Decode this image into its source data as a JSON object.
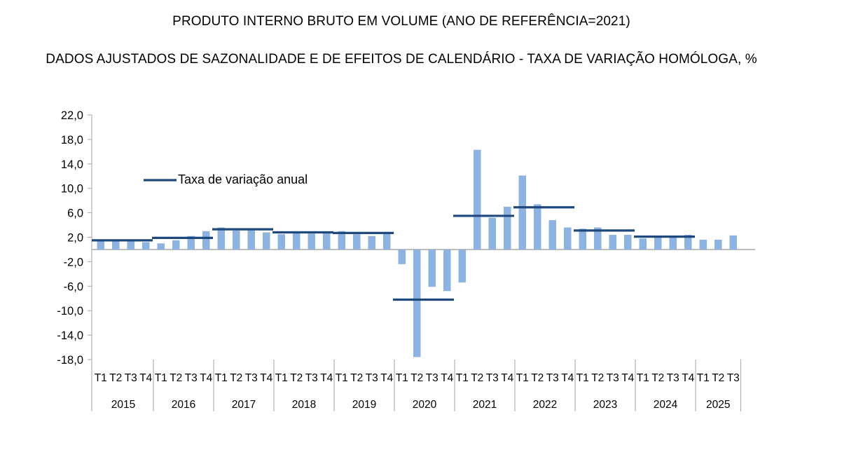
{
  "header": {
    "title": "PRODUTO INTERNO BRUTO EM VOLUME (ANO DE REFERÊNCIA=2021)",
    "subtitle": "DADOS AJUSTADOS DE SAZONALIDADE E DE EFEITOS DE CALENDÁRIO - TAXA DE VARIAÇÃO HOMÓLOGA, %"
  },
  "chart_data": {
    "type": "bar",
    "title": "PRODUTO INTERNO BRUTO EM VOLUME (ANO DE REFERÊNCIA=2021)",
    "subtitle": "DADOS AJUSTADOS DE SAZONALIDADE E DE EFEITOS DE CALENDÁRIO - TAXA DE VARIAÇÃO HOMÓLOGA, %",
    "ylim": [
      -18,
      22
    ],
    "yticks": [
      "22,0",
      "18,0",
      "14,0",
      "10,0",
      "6,0",
      "2,0",
      "-2,0",
      "-6,0",
      "-10,0",
      "-14,0",
      "-18,0"
    ],
    "ytick_values": [
      22,
      18,
      14,
      10,
      6,
      2,
      -2,
      -6,
      -10,
      -14,
      -18
    ],
    "legend": {
      "label": "Taxa de variação anual",
      "placement": "top-left"
    },
    "colors": {
      "bars": "#8db3e2",
      "annual": "#1f497d",
      "axis": "#a6a6a6"
    },
    "years": [
      {
        "year": "2015",
        "quarters": [
          "T1",
          "T2",
          "T3",
          "T4"
        ],
        "values": [
          1.5,
          1.5,
          1.5,
          1.2
        ],
        "annual": 1.5
      },
      {
        "year": "2016",
        "quarters": [
          "T1",
          "T2",
          "T3",
          "T4"
        ],
        "values": [
          1.0,
          1.5,
          2.2,
          3.0
        ],
        "annual": 1.9
      },
      {
        "year": "2017",
        "quarters": [
          "T1",
          "T2",
          "T3",
          "T4"
        ],
        "values": [
          3.6,
          3.1,
          3.2,
          2.8
        ],
        "annual": 3.3
      },
      {
        "year": "2018",
        "quarters": [
          "T1",
          "T2",
          "T3",
          "T4"
        ],
        "values": [
          2.5,
          2.8,
          2.6,
          2.8
        ],
        "annual": 2.8
      },
      {
        "year": "2019",
        "quarters": [
          "T1",
          "T2",
          "T3",
          "T4"
        ],
        "values": [
          3.0,
          2.5,
          2.2,
          2.8
        ],
        "annual": 2.7
      },
      {
        "year": "2020",
        "quarters": [
          "T1",
          "T2",
          "T3",
          "T4"
        ],
        "values": [
          -2.4,
          -17.6,
          -6.1,
          -6.8
        ],
        "annual": -8.2
      },
      {
        "year": "2021",
        "quarters": [
          "T1",
          "T2",
          "T3",
          "T4"
        ],
        "values": [
          -5.4,
          16.3,
          5.2,
          7.0
        ],
        "annual": 5.5
      },
      {
        "year": "2022",
        "quarters": [
          "T1",
          "T2",
          "T3",
          "T4"
        ],
        "values": [
          12.1,
          7.4,
          4.8,
          3.6
        ],
        "annual": 6.9
      },
      {
        "year": "2023",
        "quarters": [
          "T1",
          "T2",
          "T3",
          "T4"
        ],
        "values": [
          3.4,
          3.6,
          2.4,
          2.4
        ],
        "annual": 3.1
      },
      {
        "year": "2024",
        "quarters": [
          "T1",
          "T2",
          "T3",
          "T4"
        ],
        "values": [
          1.8,
          2.0,
          2.0,
          2.4
        ],
        "annual": 2.1
      },
      {
        "year": "2025",
        "quarters": [
          "T1",
          "T2",
          "T3"
        ],
        "values": [
          1.6,
          1.6,
          2.3
        ],
        "annual": null
      }
    ]
  }
}
